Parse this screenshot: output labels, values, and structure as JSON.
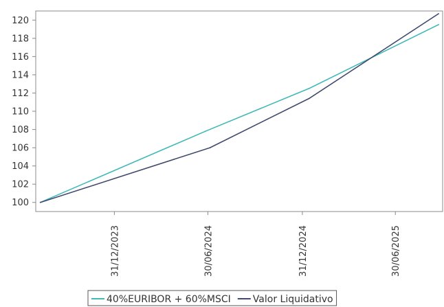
{
  "chart_data": {
    "type": "line",
    "title": "",
    "xlabel": "",
    "ylabel": "",
    "ylim": [
      99,
      121
    ],
    "x_start": "2023-07-31",
    "x_end": "2025-09-30",
    "yticks": [
      100,
      102,
      104,
      106,
      108,
      110,
      112,
      114,
      116,
      118,
      120
    ],
    "xticks": [
      {
        "date": "2023-12-31",
        "label": "31/12/2023"
      },
      {
        "date": "2024-06-30",
        "label": "30/06/2024"
      },
      {
        "date": "2024-12-31",
        "label": "31/12/2024"
      },
      {
        "date": "2025-06-30",
        "label": "30/06/2025"
      }
    ],
    "grid": false,
    "legend_position": "bottom",
    "series": [
      {
        "name": "40%EURIBOR + 60%MSCI",
        "color": "#3fb8b8",
        "points": [
          {
            "x": "2023-08-09",
            "y": 100.0
          },
          {
            "x": "2024-06-25",
            "y": 107.8
          },
          {
            "x": "2025-01-13",
            "y": 112.5
          },
          {
            "x": "2025-09-22",
            "y": 119.5
          }
        ]
      },
      {
        "name": "Valor Liquidativo",
        "color": "#414a6e",
        "points": [
          {
            "x": "2023-08-09",
            "y": 100.0
          },
          {
            "x": "2024-07-04",
            "y": 106.0
          },
          {
            "x": "2025-01-13",
            "y": 111.4
          },
          {
            "x": "2025-09-22",
            "y": 120.7
          }
        ]
      }
    ]
  }
}
